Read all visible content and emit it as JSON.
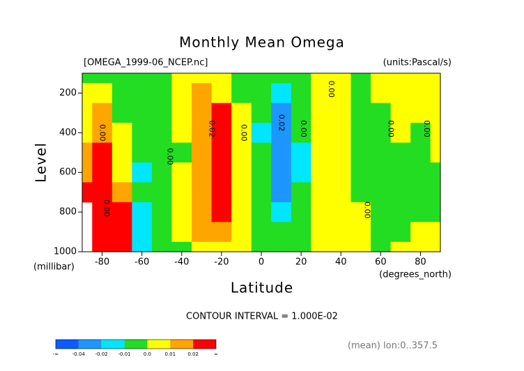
{
  "chart_data": {
    "type": "contour",
    "title": "Monthly Mean Omega",
    "subtitle_left": "[OMEGA_1999-06_NCEP.nc]",
    "subtitle_right": "(units:Pascal/s)",
    "y_label": "Level",
    "y_unit": "(millibar)",
    "x_label": "Latitude",
    "x_unit": "(degrees_north)",
    "contour_note": "CONTOUR INTERVAL = 1.000E-02",
    "footer": "(mean) lon:0..357.5",
    "x": [
      -90,
      -80,
      -70,
      -60,
      -50,
      -40,
      -30,
      -20,
      -10,
      0,
      10,
      20,
      30,
      40,
      50,
      60,
      70,
      80,
      90
    ],
    "y": [
      100,
      200,
      300,
      400,
      500,
      600,
      700,
      800,
      900,
      1000
    ],
    "xlim": [
      -90,
      90
    ],
    "xticks": [
      -80,
      -60,
      -40,
      -20,
      0,
      20,
      40,
      60,
      80
    ],
    "ylim": [
      100,
      1000
    ],
    "yticks": [
      200,
      400,
      600,
      800,
      1000
    ],
    "z": [
      [
        -0.005,
        -0.005,
        -0.005,
        -0.005,
        -0.005,
        0.005,
        0.005,
        0.005,
        -0.005,
        -0.005,
        -0.005,
        -0.005,
        0.005,
        0.005,
        -0.005,
        0.005,
        0.005,
        0.005,
        0.005
      ],
      [
        0.005,
        0.005,
        -0.005,
        -0.005,
        -0.005,
        0.005,
        0.015,
        0.005,
        -0.005,
        -0.005,
        -0.015,
        -0.005,
        0.005,
        0.005,
        -0.005,
        0.005,
        0.005,
        0.005,
        0.005
      ],
      [
        0.005,
        0.015,
        -0.005,
        -0.005,
        -0.005,
        0.005,
        0.015,
        0.025,
        0.005,
        -0.005,
        -0.025,
        -0.005,
        0.005,
        0.005,
        -0.005,
        -0.005,
        0.005,
        0.005,
        0.005
      ],
      [
        0.005,
        0.015,
        0.005,
        -0.005,
        -0.005,
        0.005,
        0.015,
        0.025,
        0.005,
        -0.015,
        -0.025,
        -0.005,
        0.005,
        0.005,
        -0.005,
        -0.005,
        0.005,
        -0.005,
        0.005
      ],
      [
        0.015,
        0.025,
        0.005,
        -0.005,
        -0.005,
        -0.005,
        0.015,
        0.025,
        0.005,
        -0.005,
        -0.025,
        -0.015,
        0.005,
        0.005,
        -0.005,
        -0.005,
        -0.005,
        -0.005,
        0.005
      ],
      [
        0.015,
        0.025,
        0.005,
        -0.015,
        -0.005,
        0.005,
        0.015,
        0.025,
        0.005,
        -0.005,
        -0.025,
        -0.015,
        0.005,
        0.005,
        -0.005,
        -0.005,
        -0.005,
        -0.005,
        -0.005
      ],
      [
        0.025,
        0.025,
        0.015,
        -0.005,
        -0.005,
        0.005,
        0.015,
        0.025,
        0.005,
        -0.005,
        -0.025,
        -0.005,
        0.005,
        0.005,
        -0.005,
        -0.005,
        -0.005,
        -0.005,
        -0.005
      ],
      [
        null,
        0.035,
        0.025,
        -0.015,
        -0.005,
        0.005,
        0.015,
        0.025,
        0.005,
        -0.005,
        -0.015,
        -0.005,
        0.005,
        0.005,
        0.005,
        -0.005,
        -0.005,
        -0.005,
        -0.005
      ],
      [
        null,
        0.045,
        0.025,
        -0.015,
        -0.005,
        0.005,
        0.015,
        0.015,
        0.005,
        -0.005,
        -0.005,
        -0.005,
        0.005,
        0.005,
        0.005,
        -0.005,
        -0.005,
        0.005,
        0.005
      ],
      [
        null,
        0.035,
        0.025,
        -0.015,
        -0.005,
        -0.005,
        0.005,
        0.005,
        0.005,
        -0.005,
        -0.005,
        -0.005,
        0.005,
        0.005,
        0.005,
        -0.005,
        0.005,
        0.005,
        0.005
      ]
    ],
    "colorbar": {
      "ticks": [
        {
          "label": "-∞"
        },
        -0.04,
        -0.02,
        -0.01,
        {
          "value": 0,
          "label": "0.0"
        },
        0.01,
        0.02,
        {
          "label": "∞"
        }
      ],
      "colors": [
        "#0a5cff",
        "#1e96ff",
        "#00e6ff",
        "#22dd22",
        "#ffff00",
        "#ffa500",
        "#ff0000"
      ]
    },
    "annotations": [
      {
        "text": "0.00",
        "lat": -80,
        "level": 400
      },
      {
        "text": "0.00",
        "lat": -78,
        "level": 780
      },
      {
        "text": "0.00",
        "lat": -46,
        "level": 520
      },
      {
        "text": "0.02",
        "lat": -25,
        "level": 380
      },
      {
        "text": "0.00",
        "lat": -9,
        "level": 400
      },
      {
        "text": "0.02",
        "lat": 10,
        "level": 350
      },
      {
        "text": "0.00",
        "lat": 21,
        "level": 380
      },
      {
        "text": "0.00",
        "lat": 35,
        "level": 180
      },
      {
        "text": "0.00",
        "lat": 53,
        "level": 790
      },
      {
        "text": "0.00",
        "lat": 65,
        "level": 380
      },
      {
        "text": "0.00",
        "lat": 83,
        "level": 380
      }
    ]
  }
}
